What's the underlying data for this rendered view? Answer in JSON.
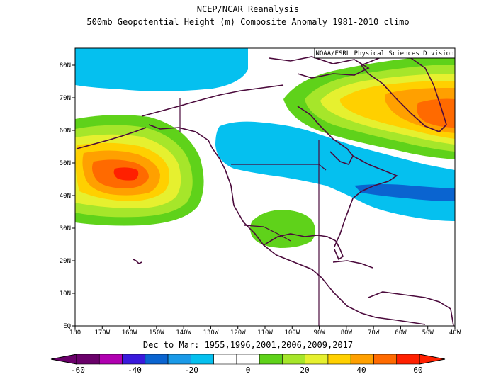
{
  "header": {
    "line1": "NCEP/NCAR Reanalysis",
    "line2": "500mb Geopotential Height (m) Composite Anomaly 1981-2010 climo",
    "credit": "NOAA/ESRL Physical Sciences Division"
  },
  "subtitle": "Dec to Mar: 1955,1996,2001,2006,2009,2017",
  "map": {
    "lon_labels": [
      "180",
      "170W",
      "160W",
      "150W",
      "140W",
      "130W",
      "120W",
      "110W",
      "100W",
      "90W",
      "80W",
      "70W",
      "60W",
      "50W",
      "40W"
    ],
    "lat_labels": [
      "EQ",
      "10N",
      "20N",
      "30N",
      "40N",
      "50N",
      "60N",
      "70N",
      "80N"
    ],
    "anomaly_centers": [
      {
        "name": "north-pacific-high",
        "lon": -161,
        "lat": 46,
        "value": 50
      },
      {
        "name": "greenland-high",
        "lon": -42,
        "lat": 63,
        "value": 50
      },
      {
        "name": "mexico-ridge",
        "lon": -103,
        "lat": 30,
        "value": 10
      },
      {
        "name": "western-canada-trough",
        "lon": -115,
        "lat": 55,
        "value": -10
      },
      {
        "name": "atlantic-trough",
        "lon": -55,
        "lat": 40,
        "value": -25
      },
      {
        "name": "arctic-trough",
        "lon": -150,
        "lat": 80,
        "value": -15
      }
    ]
  },
  "colorbar": {
    "labels": [
      "-60",
      "-40",
      "-20",
      "0",
      "20",
      "40",
      "60"
    ],
    "colors": [
      "#6a006a",
      "#b000b0",
      "#3a1adc",
      "#0a64d0",
      "#1a9ae8",
      "#05c0ef",
      "#ffffff",
      "#ffffff",
      "#5fd21a",
      "#a6e62a",
      "#e6f02f",
      "#ffd000",
      "#ffa000",
      "#ff6a00",
      "#ff2000"
    ]
  }
}
